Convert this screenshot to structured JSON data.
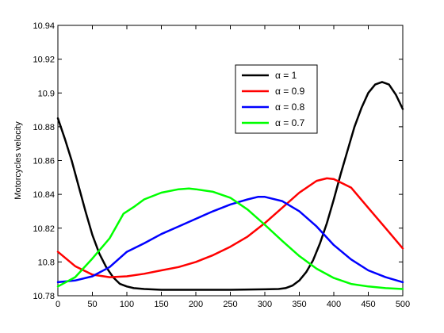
{
  "chart_data": {
    "type": "line",
    "title": "",
    "xlabel": "",
    "ylabel": "Motorcycles velocity",
    "xlim": [
      0,
      500
    ],
    "ylim": [
      10.78,
      10.94
    ],
    "xticks": [
      0,
      50,
      100,
      150,
      200,
      250,
      300,
      350,
      400,
      450,
      500
    ],
    "yticks": [
      10.78,
      10.8,
      10.82,
      10.84,
      10.86,
      10.88,
      10.9,
      10.92,
      10.94
    ],
    "ytick_labels": [
      "10.78",
      "10.8",
      "10.82",
      "10.84",
      "10.86",
      "10.88",
      "10.9",
      "10.92",
      "10.94"
    ],
    "grid": false,
    "legend_position": "top-right",
    "series": [
      {
        "name": "α = 1",
        "color": "#000000",
        "x": [
          0,
          10,
          20,
          30,
          40,
          50,
          60,
          70,
          80,
          90,
          100,
          110,
          125,
          150,
          200,
          250,
          300,
          320,
          330,
          340,
          350,
          360,
          370,
          380,
          390,
          400,
          410,
          420,
          430,
          440,
          450,
          460,
          470,
          480,
          490,
          500
        ],
        "y": [
          10.885,
          10.873,
          10.86,
          10.845,
          10.83,
          10.816,
          10.805,
          10.797,
          10.791,
          10.787,
          10.7855,
          10.7845,
          10.784,
          10.7835,
          10.7835,
          10.7835,
          10.7838,
          10.784,
          10.7845,
          10.786,
          10.789,
          10.794,
          10.801,
          10.811,
          10.823,
          10.837,
          10.852,
          10.866,
          10.88,
          10.891,
          10.9,
          10.905,
          10.9065,
          10.905,
          10.899,
          10.8905
        ]
      },
      {
        "name": "α = 0.9",
        "color": "#ff0000",
        "x": [
          0,
          25,
          50,
          75,
          100,
          125,
          150,
          175,
          200,
          225,
          250,
          275,
          300,
          325,
          350,
          375,
          390,
          400,
          425,
          450,
          475,
          500
        ],
        "y": [
          10.806,
          10.7975,
          10.7925,
          10.791,
          10.7915,
          10.793,
          10.795,
          10.797,
          10.8,
          10.804,
          10.809,
          10.815,
          10.823,
          10.832,
          10.841,
          10.848,
          10.8495,
          10.849,
          10.844,
          10.832,
          10.82,
          10.808
        ]
      },
      {
        "name": "α = 0.8",
        "color": "#0000ff",
        "x": [
          0,
          25,
          50,
          75,
          100,
          125,
          150,
          175,
          200,
          225,
          250,
          275,
          290,
          300,
          325,
          350,
          375,
          400,
          425,
          450,
          475,
          500
        ],
        "y": [
          10.788,
          10.789,
          10.7915,
          10.797,
          10.806,
          10.811,
          10.8165,
          10.821,
          10.8255,
          10.83,
          10.834,
          10.837,
          10.8385,
          10.8385,
          10.836,
          10.83,
          10.821,
          10.81,
          10.8015,
          10.795,
          10.791,
          10.788
        ]
      },
      {
        "name": "α = 0.7",
        "color": "#00ff00",
        "x": [
          0,
          25,
          50,
          75,
          95,
          110,
          125,
          150,
          175,
          190,
          200,
          225,
          250,
          275,
          300,
          325,
          350,
          375,
          400,
          425,
          450,
          475,
          500
        ],
        "y": [
          10.7855,
          10.791,
          10.802,
          10.814,
          10.8285,
          10.8325,
          10.837,
          10.841,
          10.843,
          10.8435,
          10.843,
          10.8415,
          10.838,
          10.831,
          10.822,
          10.8125,
          10.8035,
          10.796,
          10.7905,
          10.787,
          10.7855,
          10.7845,
          10.784
        ]
      }
    ]
  }
}
